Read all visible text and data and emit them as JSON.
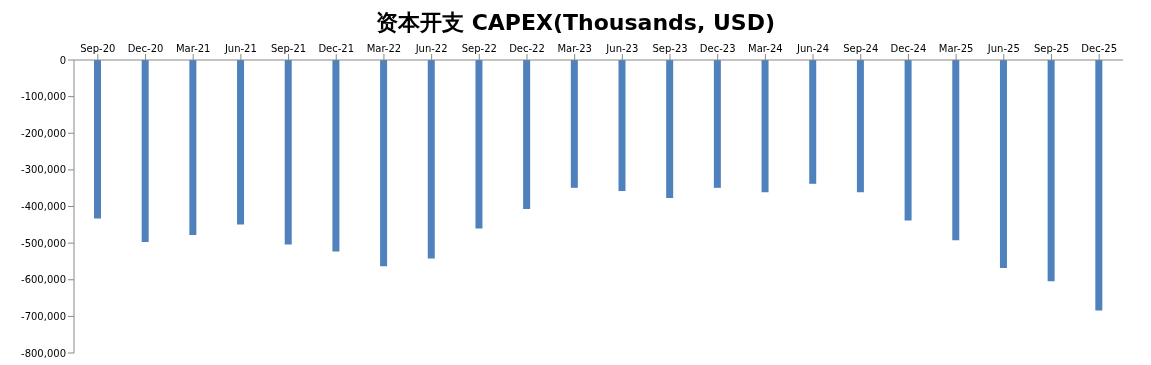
{
  "chart_data": {
    "type": "bar",
    "title": "资本开支 CAPEX(Thousands, USD)",
    "categories": [
      "Sep-20",
      "Dec-20",
      "Mar-21",
      "Jun-21",
      "Sep-21",
      "Dec-21",
      "Mar-22",
      "Jun-22",
      "Sep-22",
      "Dec-22",
      "Mar-23",
      "Jun-23",
      "Sep-23",
      "Dec-23",
      "Mar-24",
      "Jun-24",
      "Sep-24",
      "Dec-24",
      "Mar-25",
      "Jun-25",
      "Sep-25",
      "Dec-25"
    ],
    "values": [
      -433000,
      -497000,
      -478000,
      -449000,
      -504000,
      -523000,
      -563000,
      -542000,
      -460000,
      -407000,
      -349000,
      -358000,
      -377000,
      -349000,
      -361000,
      -338000,
      -361000,
      -438000,
      -492000,
      -568000,
      -604000,
      -684000
    ],
    "color": "#4f81bd",
    "ylim": [
      -800000,
      0
    ],
    "yticks": [
      {
        "value": -800000,
        "label": "-800,000"
      },
      {
        "value": -700000,
        "label": "-700,000"
      },
      {
        "value": -600000,
        "label": "-600,000"
      },
      {
        "value": -500000,
        "label": "-500,000"
      },
      {
        "value": -400000,
        "label": "-400,000"
      },
      {
        "value": -300000,
        "label": "-300,000"
      },
      {
        "value": -200000,
        "label": "-200,000"
      },
      {
        "value": -100000,
        "label": "-100,000"
      },
      0
    ],
    "grid": false
  }
}
